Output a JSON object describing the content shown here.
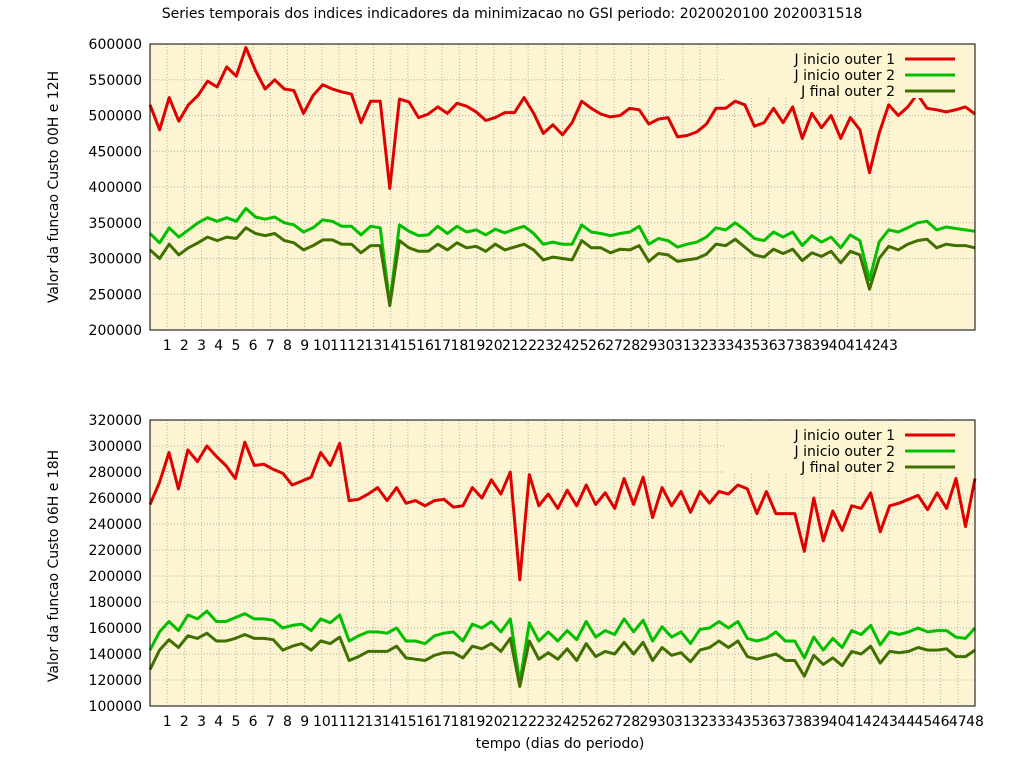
{
  "title": "Series temporais dos indices indicadores da minimizacao no GSI periodo: 2020020100 2020031518",
  "xlabel": "tempo (dias do periodo)",
  "colors": {
    "plot_background": "#fdf5d2",
    "grid": "#b0b0b0",
    "j_inicio_outer_1": "#e00000",
    "j_inicio_outer_2": "#00c000",
    "j_final_outer_2": "#407000"
  },
  "chart_data": [
    {
      "type": "line",
      "ylabel": "Valor da funcao Custo 00H e 12H",
      "ylim": [
        200000,
        600000
      ],
      "ytick_step": 50000,
      "xlim": [
        0,
        48
      ],
      "x_tick_labels": [
        "1",
        "2",
        "3",
        "4",
        "5",
        "6",
        "7",
        "8",
        "9",
        "10",
        "11",
        "12",
        "13",
        "14",
        "15",
        "16",
        "17",
        "18",
        "19",
        "20",
        "21",
        "22",
        "23",
        "24",
        "25",
        "26",
        "27",
        "28",
        "29",
        "30",
        "31",
        "32",
        "33",
        "34",
        "35",
        "36",
        "37",
        "38",
        "39",
        "40",
        "41",
        "42",
        "43"
      ],
      "grid": true,
      "legend": "top-right",
      "series": [
        {
          "name": "J inicio outer 1",
          "color_key": "j_inicio_outer_1",
          "y": [
            515000,
            480000,
            525000,
            492000,
            515000,
            528000,
            548000,
            540000,
            568000,
            555000,
            595000,
            563000,
            537000,
            550000,
            537000,
            535000,
            503000,
            528000,
            543000,
            537000,
            533000,
            530000,
            490000,
            520000,
            520000,
            398000,
            523000,
            519000,
            497000,
            502000,
            512000,
            503000,
            517000,
            513000,
            505000,
            493000,
            497000,
            504000,
            504000,
            525000,
            503000,
            475000,
            487000,
            473000,
            490000,
            520000,
            510000,
            502000,
            498000,
            500000,
            510000,
            508000,
            488000,
            495000,
            497000,
            470000,
            472000,
            477000,
            488000,
            510000,
            510000,
            520000,
            515000,
            485000,
            490000,
            510000,
            490000,
            512000,
            468000,
            503000,
            483000,
            500000,
            468000,
            497000,
            480000,
            420000,
            475000,
            515000,
            500000,
            512000,
            530000,
            510000,
            508000,
            505000,
            508000,
            512000,
            502000
          ]
        },
        {
          "name": "J inicio outer 2",
          "color_key": "j_inicio_outer_2",
          "y": [
            335000,
            322000,
            343000,
            330000,
            340000,
            350000,
            357000,
            352000,
            357000,
            352000,
            370000,
            358000,
            355000,
            358000,
            350000,
            347000,
            337000,
            343000,
            354000,
            352000,
            345000,
            345000,
            333000,
            345000,
            343000,
            237000,
            347000,
            338000,
            332000,
            333000,
            345000,
            335000,
            345000,
            337000,
            340000,
            333000,
            341000,
            336000,
            341000,
            345000,
            335000,
            320000,
            323000,
            320000,
            320000,
            347000,
            337000,
            335000,
            332000,
            335000,
            337000,
            345000,
            320000,
            328000,
            325000,
            316000,
            320000,
            323000,
            330000,
            343000,
            340000,
            350000,
            340000,
            328000,
            325000,
            337000,
            330000,
            337000,
            318000,
            332000,
            323000,
            330000,
            315000,
            333000,
            325000,
            270000,
            323000,
            340000,
            337000,
            343000,
            350000,
            352000,
            340000,
            344000,
            342000,
            340000,
            338000
          ]
        },
        {
          "name": "J  final  outer 2",
          "color_key": "j_final_outer_2",
          "y": [
            312000,
            300000,
            320000,
            305000,
            315000,
            322000,
            330000,
            325000,
            330000,
            328000,
            343000,
            335000,
            332000,
            335000,
            325000,
            322000,
            312000,
            318000,
            326000,
            326000,
            320000,
            320000,
            308000,
            318000,
            318000,
            234000,
            325000,
            315000,
            310000,
            310000,
            320000,
            312000,
            322000,
            315000,
            317000,
            310000,
            320000,
            312000,
            316000,
            320000,
            312000,
            298000,
            302000,
            300000,
            298000,
            325000,
            315000,
            315000,
            308000,
            313000,
            312000,
            318000,
            296000,
            307000,
            305000,
            296000,
            298000,
            300000,
            306000,
            320000,
            318000,
            327000,
            316000,
            305000,
            302000,
            313000,
            307000,
            313000,
            297000,
            308000,
            303000,
            310000,
            294000,
            310000,
            305000,
            257000,
            300000,
            317000,
            312000,
            320000,
            325000,
            327000,
            315000,
            320000,
            318000,
            318000,
            315000
          ]
        }
      ]
    },
    {
      "type": "line",
      "ylabel": "Valor da funcao Custo 06H e 18H",
      "ylim": [
        100000,
        320000
      ],
      "ytick_step": 20000,
      "xlim": [
        0,
        48
      ],
      "x_tick_labels": [
        "1",
        "2",
        "3",
        "4",
        "5",
        "6",
        "7",
        "8",
        "9",
        "10",
        "11",
        "12",
        "13",
        "14",
        "15",
        "16",
        "17",
        "18",
        "19",
        "20",
        "21",
        "22",
        "23",
        "24",
        "25",
        "26",
        "27",
        "28",
        "29",
        "30",
        "31",
        "32",
        "33",
        "34",
        "35",
        "36",
        "37",
        "38",
        "39",
        "40",
        "41",
        "42",
        "43",
        "44",
        "45",
        "46",
        "47",
        "48"
      ],
      "grid": true,
      "legend": "top-right",
      "series": [
        {
          "name": "J inicio outer 1",
          "color_key": "j_inicio_outer_1",
          "y": [
            255000,
            272000,
            295000,
            267000,
            297000,
            288000,
            300000,
            292000,
            285000,
            275000,
            303000,
            285000,
            286000,
            282000,
            279000,
            270000,
            273000,
            276000,
            295000,
            285000,
            302000,
            258000,
            259000,
            263000,
            268000,
            258000,
            268000,
            256000,
            258000,
            254000,
            258000,
            259000,
            253000,
            254000,
            268000,
            260000,
            274000,
            263000,
            280000,
            197000,
            278000,
            254000,
            263000,
            252000,
            266000,
            254000,
            270000,
            255000,
            264000,
            252000,
            275000,
            255000,
            276000,
            245000,
            268000,
            254000,
            265000,
            249000,
            265000,
            256000,
            265000,
            263000,
            270000,
            267000,
            248000,
            265000,
            248000,
            248000,
            248000,
            219000,
            260000,
            227000,
            250000,
            235000,
            254000,
            252000,
            264000,
            234000,
            254000,
            256000,
            259000,
            262000,
            251000,
            264000,
            252000,
            275000,
            238000,
            275000
          ]
        },
        {
          "name": "J inicio outer 2",
          "color_key": "j_inicio_outer_2",
          "y": [
            143000,
            157000,
            165000,
            158000,
            170000,
            167000,
            173000,
            165000,
            165000,
            168000,
            171000,
            167000,
            167000,
            166000,
            160000,
            162000,
            163000,
            158000,
            167000,
            164000,
            170000,
            150000,
            154000,
            157000,
            157000,
            156000,
            160000,
            150000,
            150000,
            148000,
            154000,
            156000,
            157000,
            150000,
            163000,
            160000,
            165000,
            157000,
            167000,
            118000,
            164000,
            150000,
            157000,
            150000,
            158000,
            151000,
            165000,
            153000,
            158000,
            155000,
            167000,
            157000,
            166000,
            150000,
            161000,
            153000,
            157000,
            148000,
            159000,
            160000,
            165000,
            160000,
            165000,
            152000,
            150000,
            152000,
            157000,
            150000,
            150000,
            137000,
            153000,
            143000,
            152000,
            145000,
            158000,
            155000,
            162000,
            147000,
            157000,
            155000,
            157000,
            160000,
            157000,
            158000,
            158000,
            153000,
            152000,
            160000
          ]
        },
        {
          "name": "J  final  outer 2",
          "color_key": "j_final_outer_2",
          "y": [
            128000,
            143000,
            151000,
            145000,
            154000,
            152000,
            156000,
            150000,
            150000,
            152000,
            155000,
            152000,
            152000,
            151000,
            143000,
            146000,
            148000,
            143000,
            150000,
            148000,
            153000,
            135000,
            138000,
            142000,
            142000,
            142000,
            146000,
            137000,
            136000,
            135000,
            139000,
            141000,
            141000,
            137000,
            146000,
            144000,
            148000,
            142000,
            152000,
            115000,
            150000,
            136000,
            141000,
            136000,
            144000,
            135000,
            148000,
            138000,
            142000,
            140000,
            149000,
            140000,
            149000,
            135000,
            145000,
            139000,
            141000,
            134000,
            143000,
            145000,
            150000,
            145000,
            150000,
            138000,
            136000,
            138000,
            140000,
            135000,
            135000,
            123000,
            139000,
            132000,
            137000,
            131000,
            142000,
            140000,
            146000,
            133000,
            142000,
            141000,
            142000,
            145000,
            143000,
            143000,
            144000,
            138000,
            138000,
            143000
          ]
        }
      ]
    }
  ]
}
